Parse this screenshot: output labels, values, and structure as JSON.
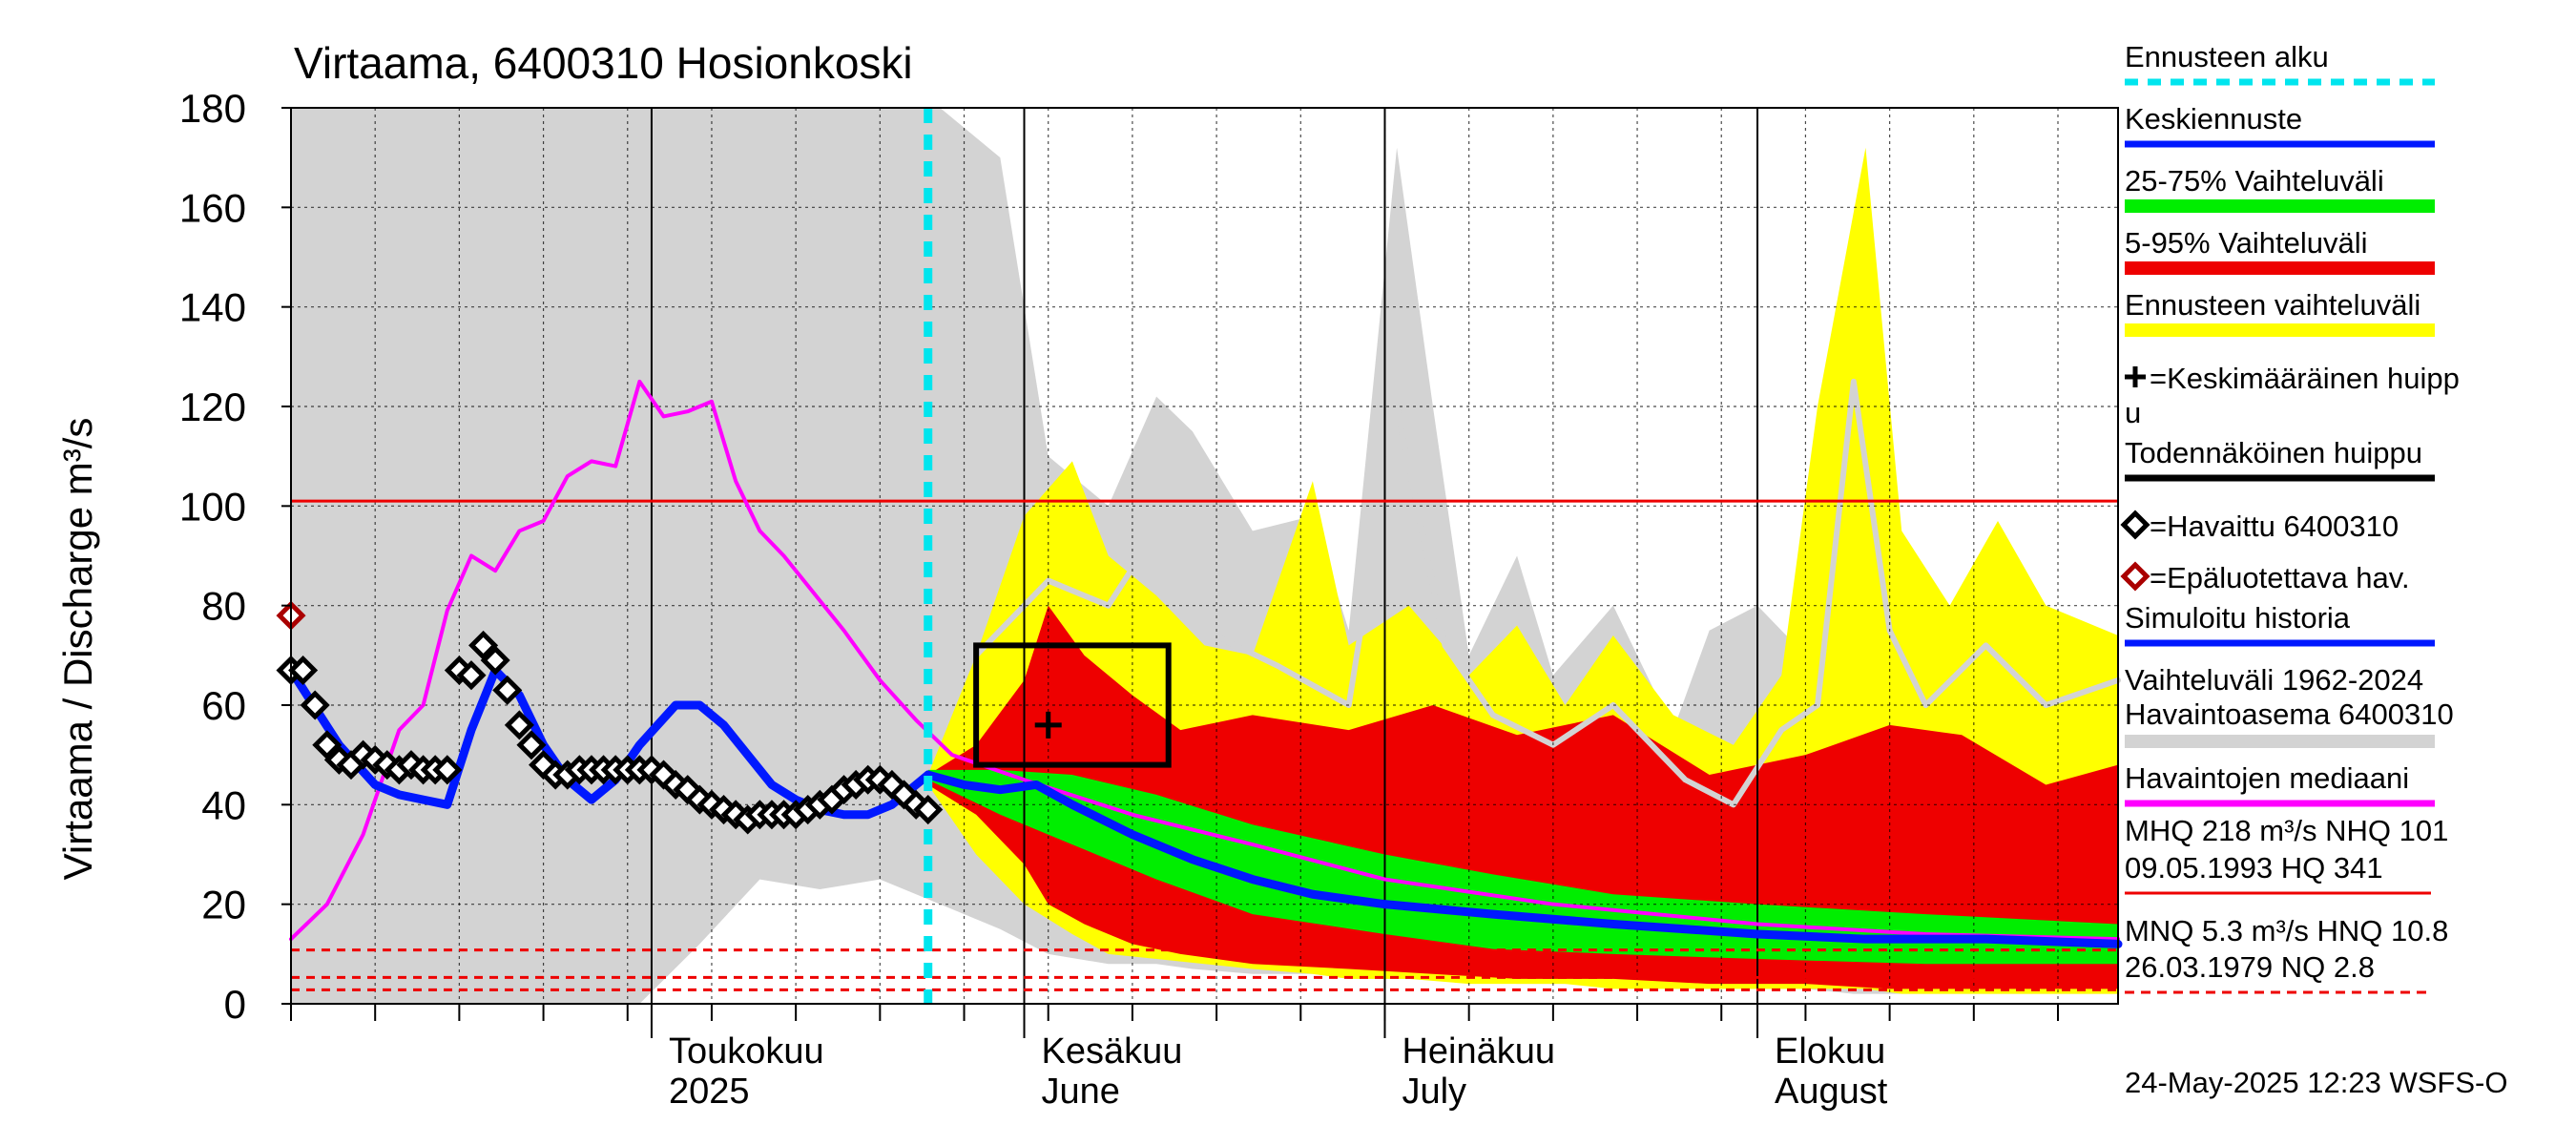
{
  "chart_data": {
    "type": "area",
    "title": "Virtaama, 6400310 Hosionkoski",
    "ylabel": "Virtaama / Discharge   m³/s",
    "ylim": [
      0,
      180
    ],
    "yticks": [
      0,
      20,
      40,
      60,
      80,
      100,
      120,
      140,
      160,
      180
    ],
    "xlim": [
      "2025-04-01",
      "2025-08-31"
    ],
    "month_labels": [
      {
        "date": "2025-05-01",
        "line1": "Toukokuu",
        "line2": "2025"
      },
      {
        "date": "2025-06-01",
        "line1": "Kesäkuu",
        "line2": "June"
      },
      {
        "date": "2025-07-01",
        "line1": "Heinäkuu",
        "line2": "July"
      },
      {
        "date": "2025-08-01",
        "line1": "Elokuu",
        "line2": "August"
      }
    ],
    "forecast_start": "2025-05-24",
    "reference_lines": {
      "red_solid": 101,
      "red_dashed": [
        10.8,
        5.3,
        2.8
      ]
    },
    "probable_peak_box": {
      "x": [
        "2025-05-28",
        "2025-06-13"
      ],
      "y": [
        48,
        72
      ]
    },
    "mean_peak": {
      "date": "2025-06-03",
      "value": 56
    },
    "unreliable_obs": [
      {
        "date": "2025-04-01",
        "value": 78
      }
    ],
    "observed": {
      "name": "Havaittu 6400310",
      "dates": [
        "2025-04-01",
        "2025-04-02",
        "2025-04-03",
        "2025-04-04",
        "2025-04-05",
        "2025-04-06",
        "2025-04-07",
        "2025-04-08",
        "2025-04-09",
        "2025-04-10",
        "2025-04-11",
        "2025-04-12",
        "2025-04-13",
        "2025-04-14",
        "2025-04-15",
        "2025-04-16",
        "2025-04-17",
        "2025-04-18",
        "2025-04-19",
        "2025-04-20",
        "2025-04-21",
        "2025-04-22",
        "2025-04-23",
        "2025-04-24",
        "2025-04-25",
        "2025-04-26",
        "2025-04-27",
        "2025-04-28",
        "2025-04-29",
        "2025-04-30",
        "2025-05-01",
        "2025-05-02",
        "2025-05-03",
        "2025-05-04",
        "2025-05-05",
        "2025-05-06",
        "2025-05-07",
        "2025-05-08",
        "2025-05-09",
        "2025-05-10",
        "2025-05-11",
        "2025-05-12",
        "2025-05-13",
        "2025-05-14",
        "2025-05-15",
        "2025-05-16",
        "2025-05-17",
        "2025-05-18",
        "2025-05-19",
        "2025-05-20",
        "2025-05-21",
        "2025-05-22",
        "2025-05-23",
        "2025-05-24"
      ],
      "values": [
        67,
        67,
        60,
        52,
        49,
        48,
        50,
        49,
        48,
        47,
        48,
        47,
        47,
        47,
        67,
        66,
        72,
        69,
        63,
        56,
        52,
        48,
        46,
        46,
        47,
        47,
        47,
        47,
        47,
        47,
        47,
        46,
        44,
        43,
        41,
        40,
        39,
        38,
        37,
        38,
        38,
        38,
        38,
        39,
        40,
        41,
        43,
        44,
        45,
        45,
        44,
        42,
        40,
        39
      ]
    },
    "simulated_history": {
      "name": "Simuloitu historia",
      "dates": [
        "2025-04-01",
        "2025-04-05",
        "2025-04-08",
        "2025-04-10",
        "2025-04-12",
        "2025-04-14",
        "2025-04-16",
        "2025-04-18",
        "2025-04-20",
        "2025-04-22",
        "2025-04-24",
        "2025-04-26",
        "2025-04-28",
        "2025-04-30",
        "2025-05-03",
        "2025-05-05",
        "2025-05-07",
        "2025-05-09",
        "2025-05-11",
        "2025-05-13",
        "2025-05-15",
        "2025-05-17",
        "2025-05-19",
        "2025-05-21",
        "2025-05-24"
      ],
      "values": [
        67,
        52,
        44,
        42,
        41,
        40,
        55,
        67,
        62,
        52,
        45,
        41,
        45,
        52,
        60,
        60,
        56,
        50,
        44,
        41,
        39,
        38,
        38,
        40,
        46
      ]
    },
    "median": {
      "name": "Havaintojen mediaani",
      "dates": [
        "2025-04-01",
        "2025-04-04",
        "2025-04-07",
        "2025-04-10",
        "2025-04-12",
        "2025-04-14",
        "2025-04-16",
        "2025-04-18",
        "2025-04-20",
        "2025-04-22",
        "2025-04-24",
        "2025-04-26",
        "2025-04-28",
        "2025-04-30",
        "2025-05-02",
        "2025-05-04",
        "2025-05-06",
        "2025-05-08",
        "2025-05-10",
        "2025-05-12",
        "2025-05-14",
        "2025-05-17",
        "2025-05-20",
        "2025-05-23",
        "2025-05-26",
        "2025-06-01",
        "2025-06-10",
        "2025-06-20",
        "2025-07-01",
        "2025-07-15",
        "2025-08-01",
        "2025-08-15",
        "2025-08-31"
      ],
      "values": [
        13,
        20,
        34,
        55,
        60,
        79,
        90,
        87,
        95,
        97,
        106,
        109,
        108,
        125,
        118,
        119,
        121,
        105,
        95,
        90,
        84,
        75,
        65,
        57,
        50,
        45,
        38,
        32,
        25,
        20,
        16,
        14,
        13
      ]
    },
    "forecast_mean": {
      "name": "Keskiennuste",
      "dates": [
        "2025-05-24",
        "2025-05-27",
        "2025-05-30",
        "2025-06-02",
        "2025-06-05",
        "2025-06-10",
        "2025-06-15",
        "2025-06-20",
        "2025-06-25",
        "2025-07-01",
        "2025-07-10",
        "2025-07-20",
        "2025-08-01",
        "2025-08-10",
        "2025-08-20",
        "2025-08-31"
      ],
      "values": [
        46,
        44,
        43,
        44,
        40,
        34,
        29,
        25,
        22,
        20,
        18,
        16,
        14,
        13,
        13,
        12
      ]
    },
    "band_5_95": {
      "name": "5-95% Vaihteluväli",
      "dates": [
        "2025-05-24",
        "2025-05-28",
        "2025-06-01",
        "2025-06-03",
        "2025-06-06",
        "2025-06-10",
        "2025-06-14",
        "2025-06-20",
        "2025-06-28",
        "2025-07-05",
        "2025-07-12",
        "2025-07-20",
        "2025-07-28",
        "2025-08-05",
        "2025-08-12",
        "2025-08-18",
        "2025-08-25",
        "2025-08-31"
      ],
      "upper": [
        46,
        52,
        65,
        80,
        70,
        62,
        55,
        58,
        55,
        60,
        54,
        58,
        46,
        50,
        56,
        54,
        44,
        48
      ],
      "lower": [
        44,
        38,
        28,
        20,
        16,
        12,
        10,
        8,
        7,
        6,
        5,
        5,
        4,
        4,
        3,
        3,
        3,
        3
      ]
    },
    "band_25_75": {
      "name": "25-75% Vaihteluväli",
      "dates": [
        "2025-05-24",
        "2025-05-30",
        "2025-06-05",
        "2025-06-12",
        "2025-06-20",
        "2025-07-01",
        "2025-07-10",
        "2025-07-20",
        "2025-08-01",
        "2025-08-15",
        "2025-08-31"
      ],
      "upper": [
        47,
        47,
        46,
        42,
        36,
        30,
        26,
        22,
        20,
        18,
        16
      ],
      "lower": [
        45,
        38,
        32,
        25,
        18,
        14,
        11,
        10,
        9,
        8,
        8
      ]
    },
    "forecast_range": {
      "name": "Ennusteen vaihteluväli",
      "dates": [
        "2025-05-24",
        "2025-05-28",
        "2025-06-01",
        "2025-06-05",
        "2025-06-08",
        "2025-06-12",
        "2025-06-16",
        "2025-06-20",
        "2025-06-25",
        "2025-06-28",
        "2025-07-03",
        "2025-07-08",
        "2025-07-12",
        "2025-07-16",
        "2025-07-20",
        "2025-07-25",
        "2025-07-30",
        "2025-08-03",
        "2025-08-06",
        "2025-08-10",
        "2025-08-13",
        "2025-08-17",
        "2025-08-21",
        "2025-08-25",
        "2025-08-31"
      ],
      "upper": [
        46,
        70,
        98,
        109,
        90,
        82,
        72,
        70,
        105,
        72,
        80,
        66,
        76,
        60,
        74,
        58,
        52,
        66,
        120,
        172,
        95,
        80,
        97,
        80,
        74
      ],
      "lower": [
        44,
        30,
        20,
        14,
        10,
        9,
        8,
        7,
        6,
        5,
        5,
        4,
        4,
        4,
        3,
        3,
        3,
        3,
        3,
        3,
        2,
        2,
        2,
        2,
        2
      ]
    },
    "history_range": {
      "name": "Vaihteluväli 1962-2024 Havaintoasema 6400310",
      "dates": [
        "2025-04-01",
        "2025-04-10",
        "2025-04-20",
        "2025-04-30",
        "2025-05-05",
        "2025-05-10",
        "2025-05-15",
        "2025-05-20",
        "2025-05-25",
        "2025-05-30",
        "2025-06-03",
        "2025-06-08",
        "2025-06-12",
        "2025-06-15",
        "2025-06-20",
        "2025-06-25",
        "2025-06-28",
        "2025-07-02",
        "2025-07-05",
        "2025-07-08",
        "2025-07-12",
        "2025-07-15",
        "2025-07-20",
        "2025-07-25",
        "2025-07-28",
        "2025-08-01",
        "2025-08-05",
        "2025-08-09",
        "2025-08-13",
        "2025-08-18",
        "2025-08-25",
        "2025-08-31"
      ],
      "upper": [
        180,
        180,
        180,
        180,
        180,
        180,
        180,
        180,
        180,
        170,
        110,
        100,
        122,
        115,
        95,
        98,
        75,
        172,
        120,
        70,
        90,
        66,
        80,
        55,
        75,
        80,
        70,
        130,
        85,
        70,
        80,
        70
      ],
      "lower": [
        0,
        0,
        0,
        0,
        12,
        25,
        23,
        25,
        20,
        15,
        10,
        8,
        8,
        7,
        6,
        6,
        5,
        5,
        5,
        5,
        4,
        4,
        4,
        3,
        3,
        3,
        3,
        2,
        2,
        2,
        2,
        2
      ],
      "median_line": {
        "dates": [
          "2025-05-28",
          "2025-06-03",
          "2025-06-08",
          "2025-06-12",
          "2025-06-16",
          "2025-06-22",
          "2025-06-28",
          "2025-07-02",
          "2025-07-06",
          "2025-07-10",
          "2025-07-15",
          "2025-07-20",
          "2025-07-26",
          "2025-07-30",
          "2025-08-03",
          "2025-08-06",
          "2025-08-09",
          "2025-08-12",
          "2025-08-15",
          "2025-08-20",
          "2025-08-25",
          "2025-08-31"
        ],
        "values": [
          70,
          85,
          80,
          95,
          75,
          68,
          60,
          120,
          72,
          58,
          52,
          60,
          45,
          40,
          55,
          60,
          125,
          75,
          60,
          72,
          60,
          65
        ]
      }
    }
  },
  "legend": {
    "items": [
      {
        "label": "Ennusteen alku",
        "color": "#00e5ee",
        "style": "dashed"
      },
      {
        "label": "Keskiennuste",
        "color": "#0018ff",
        "style": "line"
      },
      {
        "label": "25-75% Vaihteluväli",
        "color": "#00ee00",
        "style": "thick"
      },
      {
        "label": "5-95% Vaihteluväli",
        "color": "#ee0000",
        "style": "thick"
      },
      {
        "label": "Ennusteen vaihteluväli",
        "color": "#ffff00",
        "style": "thick"
      },
      {
        "label": "=Keskimääräinen huipp",
        "label2": "u",
        "color": "#000000",
        "style": "plus"
      },
      {
        "label": "Todennäköinen huippu",
        "color": "#000000",
        "style": "line"
      },
      {
        "label": "=Havaittu 6400310",
        "color": "#000000",
        "style": "diamond"
      },
      {
        "label": "=Epäluotettava hav.",
        "color": "#aa0000",
        "style": "diamond"
      },
      {
        "label": "Simuloitu historia",
        "color": "#0018ff",
        "style": "line"
      },
      {
        "label": "Vaihteluväli 1962-2024",
        "label2": " Havaintoasema 6400310",
        "color": "#d3d3d3",
        "style": "thick"
      },
      {
        "label": "Havaintojen mediaani",
        "color": "#ff00ff",
        "style": "line"
      }
    ],
    "stats": {
      "mhq_line1": "MHQ  218 m³/s NHQ  101",
      "mhq_line2": "09.05.1993 HQ  341",
      "mnq_line1": "MNQ  5.3 m³/s HNQ 10.8",
      "mnq_line2": "26.03.1979 NQ  2.8"
    }
  },
  "footer": "24-May-2025 12:23 WSFS-O",
  "colors": {
    "history": "#d3d3d3",
    "forecast_range": "#ffff00",
    "band_5_95": "#ee0000",
    "band_25_75": "#00ee00",
    "mean": "#0018ff",
    "median": "#ff00ff",
    "forecast_start": "#00e5ee",
    "reference": "#ee0000"
  }
}
